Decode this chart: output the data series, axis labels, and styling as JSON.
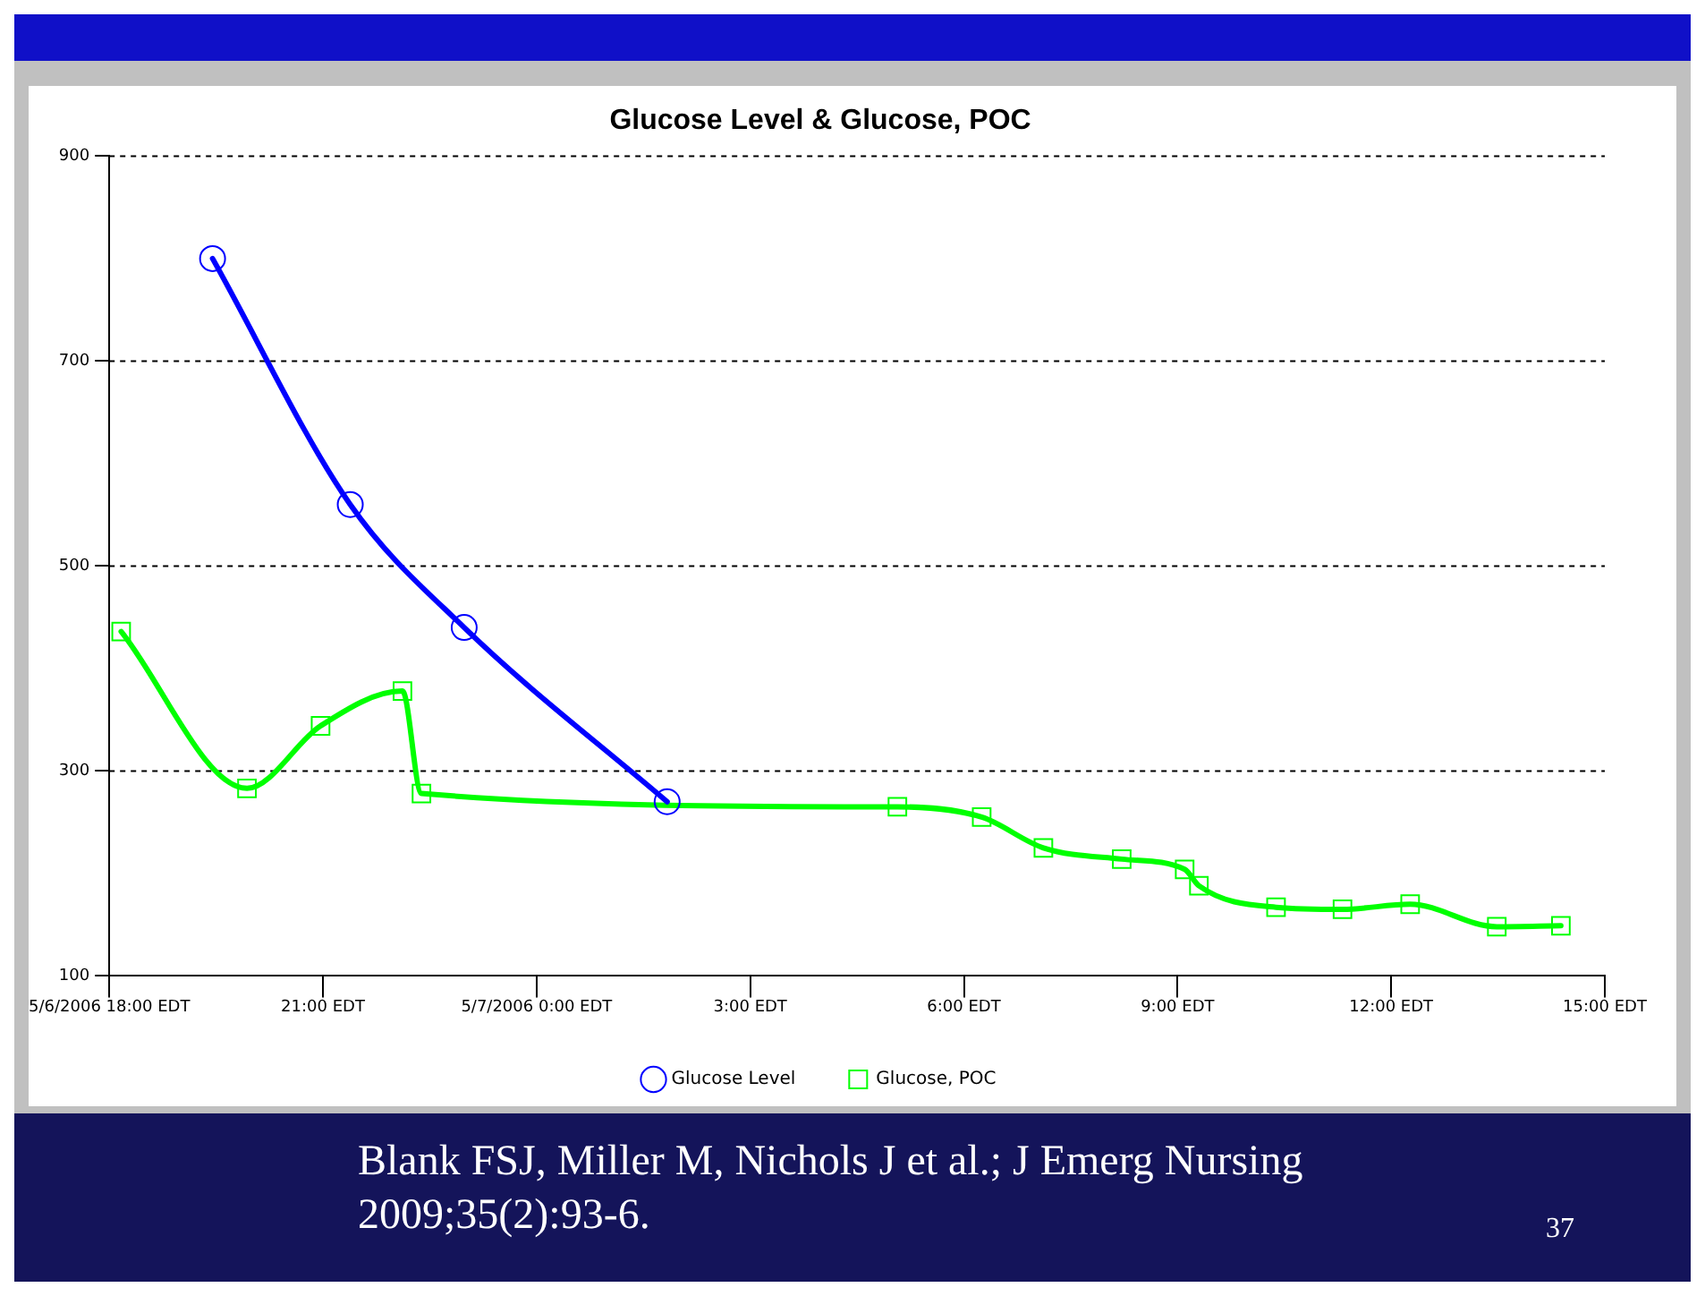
{
  "chart_data": {
    "type": "line",
    "title": "Glucose Level & Glucose, POC",
    "series": [
      {
        "name": "Glucose Level",
        "color": "#0000ff",
        "marker": "circle",
        "x": [
          "2006-05-06T19:27",
          "2006-05-06T21:23",
          "2006-05-06T22:59",
          "2006-05-07T01:50"
        ],
        "values": [
          800,
          560,
          440,
          270
        ]
      },
      {
        "name": "Glucose, POC",
        "color": "#00ff00",
        "marker": "square",
        "x": [
          "2006-05-06T18:10",
          "2006-05-06T19:56",
          "2006-05-06T20:58",
          "2006-05-06T22:07",
          "2006-05-06T22:23",
          "2006-05-07T05:04",
          "2006-05-07T06:15",
          "2006-05-07T07:07",
          "2006-05-07T08:13",
          "2006-05-07T09:06",
          "2006-05-07T09:18",
          "2006-05-07T10:23",
          "2006-05-07T11:19",
          "2006-05-07T12:16",
          "2006-05-07T13:29",
          "2006-05-07T14:23"
        ],
        "values": [
          436,
          283,
          344,
          378,
          278,
          265,
          255,
          225,
          214,
          204,
          188,
          167,
          165,
          170,
          148,
          149
        ]
      }
    ],
    "xlim": [
      "2006-05-06T18:00",
      "2006-05-07T15:00"
    ],
    "xticks": [
      {
        "value": "2006-05-06T18:00",
        "label": "5/6/2006 18:00 EDT"
      },
      {
        "value": "2006-05-06T21:00",
        "label": "21:00 EDT"
      },
      {
        "value": "2006-05-07T00:00",
        "label": "5/7/2006 0:00 EDT"
      },
      {
        "value": "2006-05-07T03:00",
        "label": "3:00 EDT"
      },
      {
        "value": "2006-05-07T06:00",
        "label": "6:00 EDT"
      },
      {
        "value": "2006-05-07T09:00",
        "label": "9:00 EDT"
      },
      {
        "value": "2006-05-07T12:00",
        "label": "12:00 EDT"
      },
      {
        "value": "2006-05-07T15:00",
        "label": "15:00 EDT"
      }
    ],
    "ylim": [
      100,
      900
    ],
    "yticks": [
      100,
      300,
      500,
      700,
      900
    ],
    "grid": "y",
    "legend": "bottom",
    "line_style": "solid",
    "annotations": [
      "Blank FSJ, Miller M, Nichols J et al.;  J Emerg Nursing 2009;35(2):93-6.",
      "37"
    ]
  }
}
